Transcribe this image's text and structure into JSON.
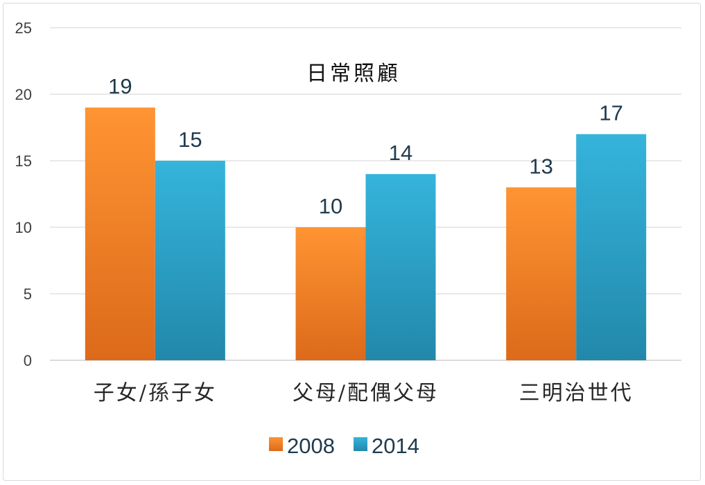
{
  "chart_data": {
    "type": "bar",
    "title": "日常照顧",
    "categories": [
      "子女/孫子女",
      "父母/配偶父母",
      "三明治世代"
    ],
    "series": [
      {
        "name": "2008",
        "values": [
          19,
          10,
          13
        ],
        "color": "#f07d1e"
      },
      {
        "name": "2014",
        "values": [
          15,
          14,
          17
        ],
        "color": "#2aa3c8"
      }
    ],
    "ylim": [
      0,
      25
    ],
    "yticks": [
      0,
      5,
      10,
      15,
      20,
      25
    ],
    "grid": true,
    "legend": "bottom",
    "data_labels": true
  }
}
